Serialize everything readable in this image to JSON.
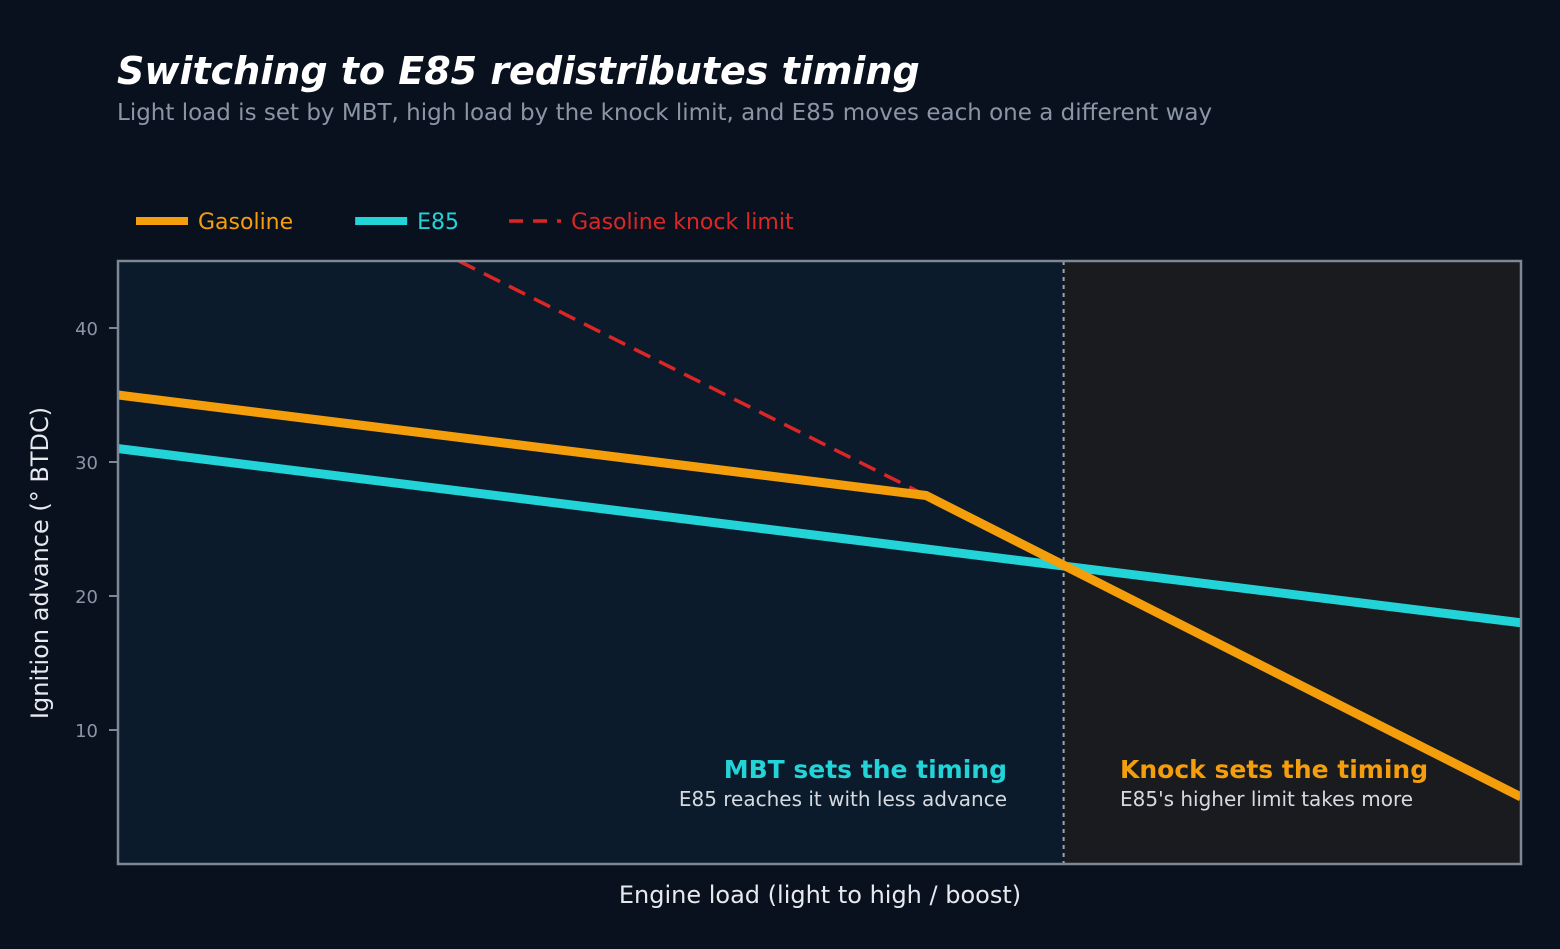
{
  "chart_data": {
    "type": "line",
    "title": "Switching to E85 redistributes timing",
    "subtitle": "Light load is set by MBT, high load by the knock limit, and E85 moves each one a different way",
    "xlabel": "Engine load (light to high / boost)",
    "ylabel": "Ignition advance (° BTDC)",
    "xlim": [
      0,
      1
    ],
    "ylim": [
      0,
      45
    ],
    "y_ticks": [
      10,
      20,
      30,
      40
    ],
    "grid": false,
    "legend_position": "top-left",
    "series": [
      {
        "name": "Gasoline",
        "color": "#f59e0b",
        "style": "solid",
        "points": [
          [
            0,
            35
          ],
          [
            0.576,
            27.5
          ],
          [
            1,
            5
          ]
        ]
      },
      {
        "name": "E85",
        "color": "#22d3d8",
        "style": "solid",
        "points": [
          [
            0,
            31
          ],
          [
            1,
            18
          ]
        ]
      },
      {
        "name": "Gasoline knock limit",
        "color": "#dc2626",
        "style": "dashed",
        "points": [
          [
            0.243,
            45
          ],
          [
            0.576,
            27.5
          ]
        ]
      }
    ],
    "regions": [
      {
        "name": "MBT region",
        "x_range": [
          0,
          0.674
        ],
        "fill": "#0b1b2b",
        "annotation": {
          "title": "MBT sets the timing",
          "subtitle": "E85 reaches it with less advance",
          "title_color": "#22d3d8"
        }
      },
      {
        "name": "Knock region",
        "x_range": [
          0.674,
          1
        ],
        "fill": "#1a1b1f",
        "annotation": {
          "title": "Knock sets the timing",
          "subtitle": "E85's higher limit takes more",
          "title_color": "#f59e0b"
        }
      }
    ],
    "divider_x": 0.674
  },
  "colors": {
    "background": "#0a111e",
    "title": "#ffffff",
    "subtitle": "#8a96a6",
    "tick_text": "#8a96a6",
    "axis_label": "#e6e9ee",
    "frame": "#7d8896",
    "annotation_sub": "#d6dae0"
  }
}
